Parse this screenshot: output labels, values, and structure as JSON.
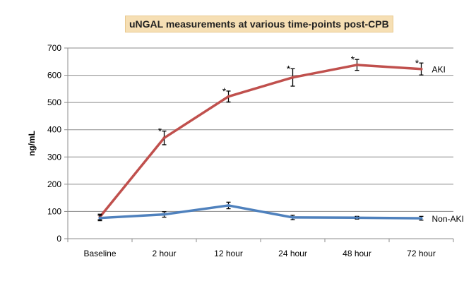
{
  "chart_data": {
    "type": "line",
    "title": "uNGAL measurements at various time-points post-CPB",
    "xlabel": "",
    "ylabel": "ng/mL",
    "ylim": [
      0,
      700
    ],
    "yticks": [
      0,
      100,
      200,
      300,
      400,
      500,
      600,
      700
    ],
    "grid": true,
    "categories": [
      "Baseline",
      "2 hour",
      "12 hour",
      "24 hour",
      "48 hour",
      "72 hour"
    ],
    "series": [
      {
        "name": "AKI",
        "color": "#c0504d",
        "values": [
          80,
          370,
          522,
          592,
          638,
          623
        ],
        "error": [
          10,
          25,
          20,
          32,
          20,
          22
        ],
        "significance": [
          "",
          "*",
          "*",
          "*",
          "*",
          "*"
        ]
      },
      {
        "name": "Non-AKI",
        "color": "#4f81bd",
        "values": [
          76,
          89,
          122,
          78,
          77,
          75
        ],
        "error": [
          10,
          10,
          12,
          8,
          5,
          7
        ],
        "significance": [
          "",
          "",
          "",
          "",
          "",
          ""
        ]
      }
    ],
    "legend": "inline labels at right end of series"
  }
}
